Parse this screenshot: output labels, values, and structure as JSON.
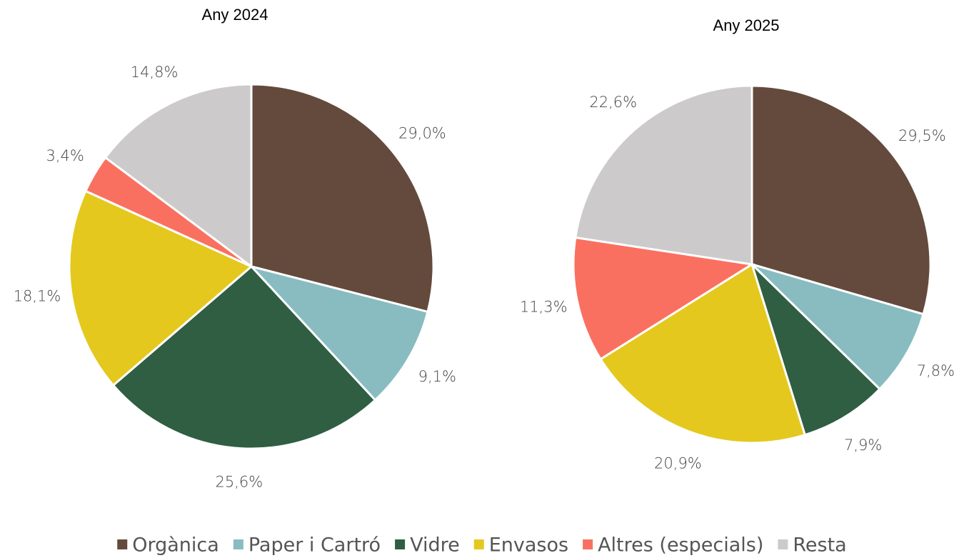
{
  "chart_data": [
    {
      "type": "pie",
      "title": "Any 2024",
      "values": [
        29.0,
        9.1,
        25.6,
        18.1,
        3.4,
        14.8
      ],
      "value_labels": [
        "29,0%",
        "9,1%",
        "25,6%",
        "18,1%",
        "3,4%",
        "14,8%"
      ]
    },
    {
      "type": "pie",
      "title": "Any 2025",
      "values": [
        29.5,
        7.8,
        7.9,
        20.9,
        11.3,
        22.6
      ],
      "value_labels": [
        "29,5%",
        "7,8%",
        "7,9%",
        "20,9%",
        "11,3%",
        "22,6%"
      ]
    }
  ],
  "legend": {
    "labels": [
      "Orgànica",
      "Paper i Cartró",
      "Vidre",
      "Envasos",
      "Altres (especials)",
      "Resta"
    ],
    "colors": [
      "#634a3c",
      "#88bcc0",
      "#2f5e43",
      "#e4c81e",
      "#fa7060",
      "#cccacb"
    ]
  }
}
